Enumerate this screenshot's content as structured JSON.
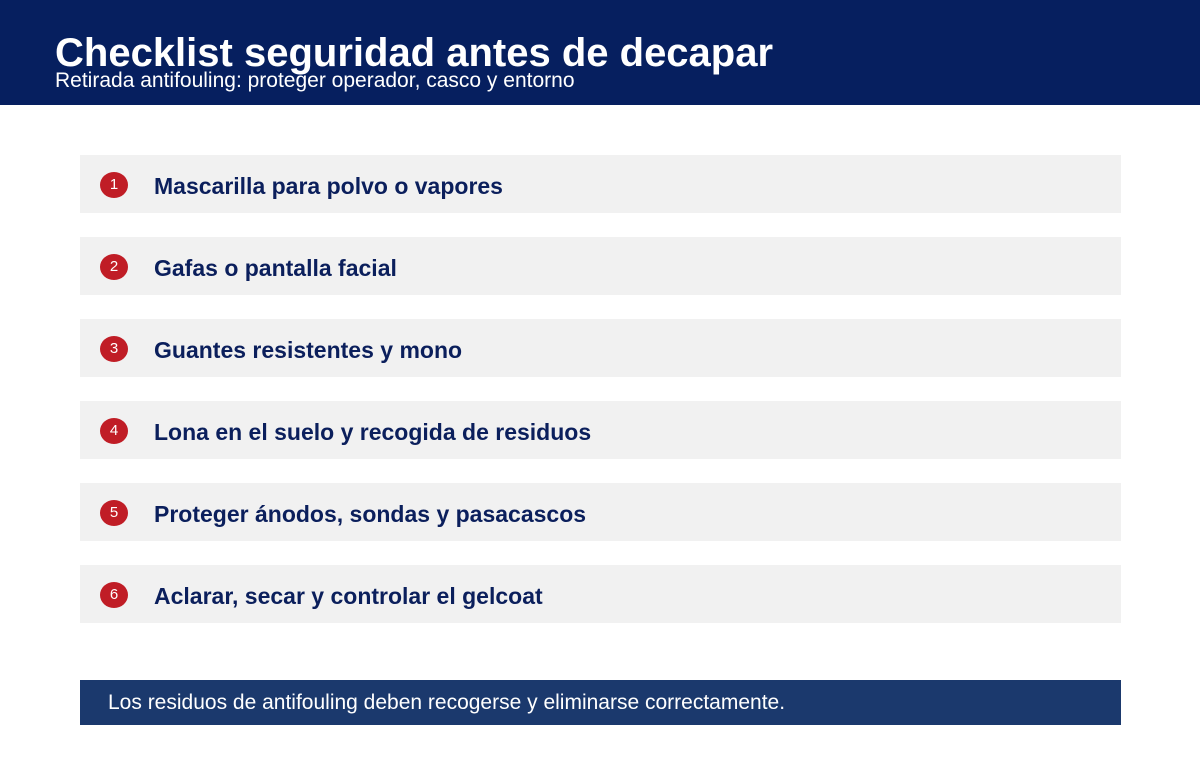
{
  "header": {
    "title": "Checklist seguridad antes de decapar",
    "subtitle": "Retirada antifouling: proteger operador, casco y entorno"
  },
  "checklist": {
    "items": [
      {
        "number": "1",
        "label": "Mascarilla para polvo o vapores"
      },
      {
        "number": "2",
        "label": "Gafas o pantalla facial"
      },
      {
        "number": "3",
        "label": "Guantes resistentes y mono"
      },
      {
        "number": "4",
        "label": "Lona en el suelo y recogida de residuos"
      },
      {
        "number": "5",
        "label": "Proteger ánodos, sondas y pasacascos"
      },
      {
        "number": "6",
        "label": "Aclarar, secar y controlar el gelcoat"
      }
    ]
  },
  "footer": {
    "note": "Los residuos de antifouling deben recogerse y eliminarse correctamente."
  },
  "colors": {
    "header_bg": "#061f5f",
    "item_bg": "#f1f1f1",
    "badge": "#c01d26",
    "text_dark": "#0b1f5c",
    "footer_bg": "#1b396d"
  }
}
